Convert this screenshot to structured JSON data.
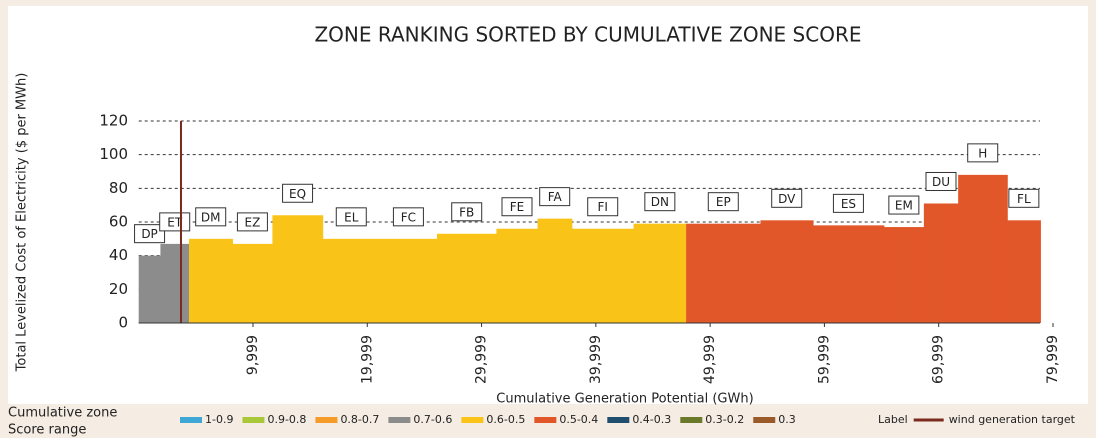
{
  "chart_data": {
    "type": "step-area",
    "title": "ZONE RANKING SORTED BY CUMULATIVE ZONE SCORE",
    "x_label": "Cumulative Generation Potential (GWh)",
    "y_label": "Total Levelized Cost of Electricity ($ per MWh)",
    "categories": [
      "DP",
      "ET",
      "DM",
      "EZ",
      "EQ",
      "EL",
      "FC",
      "FB",
      "FE",
      "FA",
      "FI",
      "DN",
      "EP",
      "DV",
      "ES",
      "EM",
      "DU",
      "H",
      "FL"
    ],
    "starts": [
      0,
      1900,
      4400,
      8200,
      11700,
      16100,
      21100,
      26100,
      31300,
      34900,
      37900,
      43300,
      47900,
      54400,
      59000,
      65200,
      68700,
      71700,
      76000
    ],
    "ends": [
      1900,
      4400,
      8200,
      11700,
      16100,
      21100,
      26100,
      31300,
      34900,
      37900,
      43300,
      47900,
      54400,
      59000,
      65200,
      68700,
      71700,
      76000,
      78900
    ],
    "values": [
      40,
      47,
      50,
      47,
      64,
      50,
      50,
      53,
      56,
      62,
      56,
      59,
      59,
      61,
      58,
      57,
      71,
      88,
      61
    ],
    "colors": [
      "#8c8c8c",
      "#8c8c8c",
      "#f9c318",
      "#f9c318",
      "#f9c318",
      "#f9c318",
      "#f9c318",
      "#f9c318",
      "#f9c318",
      "#f9c318",
      "#f9c318",
      "#f9c318",
      "#e2572a",
      "#e2572a",
      "#e2572a",
      "#e2572a",
      "#e2572a",
      "#e2572a",
      "#e2572a"
    ],
    "target_x": 3700,
    "target_color": "#7a2a1e",
    "xlim": [
      0,
      80000
    ],
    "ylim": [
      0,
      120
    ],
    "yticks": [
      0,
      20,
      40,
      60,
      80,
      100,
      120
    ],
    "xticks": [
      {
        "value": 9999,
        "label": "9,999"
      },
      {
        "value": 19999,
        "label": "19,999"
      },
      {
        "value": 29999,
        "label": "29,999"
      },
      {
        "value": 39999,
        "label": "39,999"
      },
      {
        "value": 49999,
        "label": "49,999"
      },
      {
        "value": 59999,
        "label": "59,999"
      },
      {
        "value": 69999,
        "label": "69,999"
      },
      {
        "value": 79999,
        "label": "79,999"
      }
    ],
    "grid": true,
    "legend_title": [
      "Cumulative zone",
      "Score range"
    ],
    "legend": [
      {
        "name": "1-0.9",
        "color": "#3fa7d6"
      },
      {
        "name": "0.9-0.8",
        "color": "#a8c83a"
      },
      {
        "name": "0.8-0.7",
        "color": "#f59b2a"
      },
      {
        "name": "0.7-0.6",
        "color": "#8c8c8c"
      },
      {
        "name": "0.6-0.5",
        "color": "#f9c318"
      },
      {
        "name": "0.5-0.4",
        "color": "#e2572a"
      },
      {
        "name": "0.4-0.3",
        "color": "#1f4e6e"
      },
      {
        "name": "0.3-0.2",
        "color": "#6b7a2a"
      },
      {
        "name": "0.3",
        "color": "#9a5a2a"
      }
    ],
    "label_key": "Label",
    "target_name": "wind generation target"
  }
}
